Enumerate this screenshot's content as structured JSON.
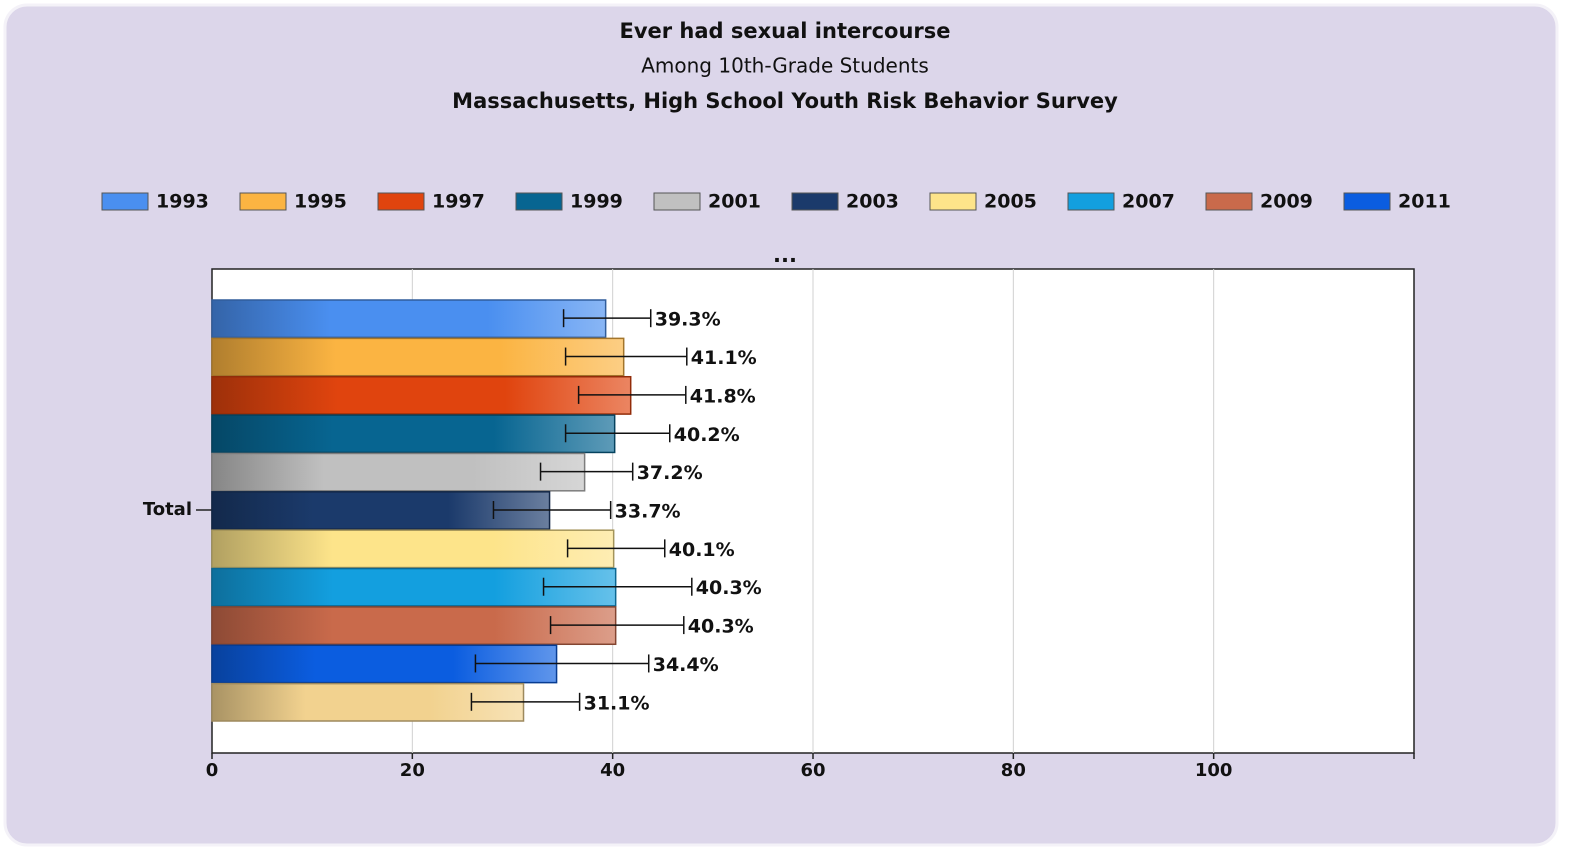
{
  "chart_data": {
    "type": "hbar",
    "title": "Ever had sexual intercourse",
    "subtitle": "Among 10th-Grade Students",
    "source_title": "Massachusetts, High School Youth Risk Behavior Survey",
    "legend_more": "...",
    "categories": [
      "Total"
    ],
    "xlim": [
      0,
      120
    ],
    "xticks": [
      0,
      20,
      40,
      60,
      80,
      100
    ],
    "grid": true,
    "series": [
      {
        "name": "1993",
        "color": "#4a8ff0",
        "values": [
          39.3
        ],
        "value_labels": [
          "39.3%"
        ],
        "ci_low": [
          35.1
        ],
        "ci_high": [
          43.8
        ]
      },
      {
        "name": "1995",
        "color": "#fbb442",
        "values": [
          41.1
        ],
        "value_labels": [
          "41.1%"
        ],
        "ci_low": [
          35.3
        ],
        "ci_high": [
          47.4
        ]
      },
      {
        "name": "1997",
        "color": "#e0440e",
        "values": [
          41.8
        ],
        "value_labels": [
          "41.8%"
        ],
        "ci_low": [
          36.6
        ],
        "ci_high": [
          47.3
        ]
      },
      {
        "name": "1999",
        "color": "#076591",
        "values": [
          40.2
        ],
        "value_labels": [
          "40.2%"
        ],
        "ci_low": [
          35.3
        ],
        "ci_high": [
          45.7
        ]
      },
      {
        "name": "2001",
        "color": "#c0c0c0",
        "values": [
          37.2
        ],
        "value_labels": [
          "37.2%"
        ],
        "ci_low": [
          32.8
        ],
        "ci_high": [
          42.0
        ]
      },
      {
        "name": "2003",
        "color": "#1b3a6b",
        "values": [
          33.7
        ],
        "value_labels": [
          "33.7%"
        ],
        "ci_low": [
          28.1
        ],
        "ci_high": [
          39.8
        ]
      },
      {
        "name": "2005",
        "color": "#fde48a",
        "values": [
          40.1
        ],
        "value_labels": [
          "40.1%"
        ],
        "ci_low": [
          35.5
        ],
        "ci_high": [
          45.2
        ]
      },
      {
        "name": "2007",
        "color": "#139fdf",
        "values": [
          40.3
        ],
        "value_labels": [
          "40.3%"
        ],
        "ci_low": [
          33.1
        ],
        "ci_high": [
          47.9
        ]
      },
      {
        "name": "2009",
        "color": "#c96a4b",
        "values": [
          40.3
        ],
        "value_labels": [
          "40.3%"
        ],
        "ci_low": [
          33.8
        ],
        "ci_high": [
          47.1
        ]
      },
      {
        "name": "2011",
        "color": "#0b5de0",
        "values": [
          34.4
        ],
        "value_labels": [
          "34.4%"
        ],
        "ci_low": [
          26.3
        ],
        "ci_high": [
          43.6
        ]
      },
      {
        "color": "#f2d28f",
        "values": [
          31.1
        ],
        "value_labels": [
          "31.1%"
        ],
        "ci_low": [
          25.9
        ],
        "ci_high": [
          36.7
        ]
      }
    ]
  }
}
